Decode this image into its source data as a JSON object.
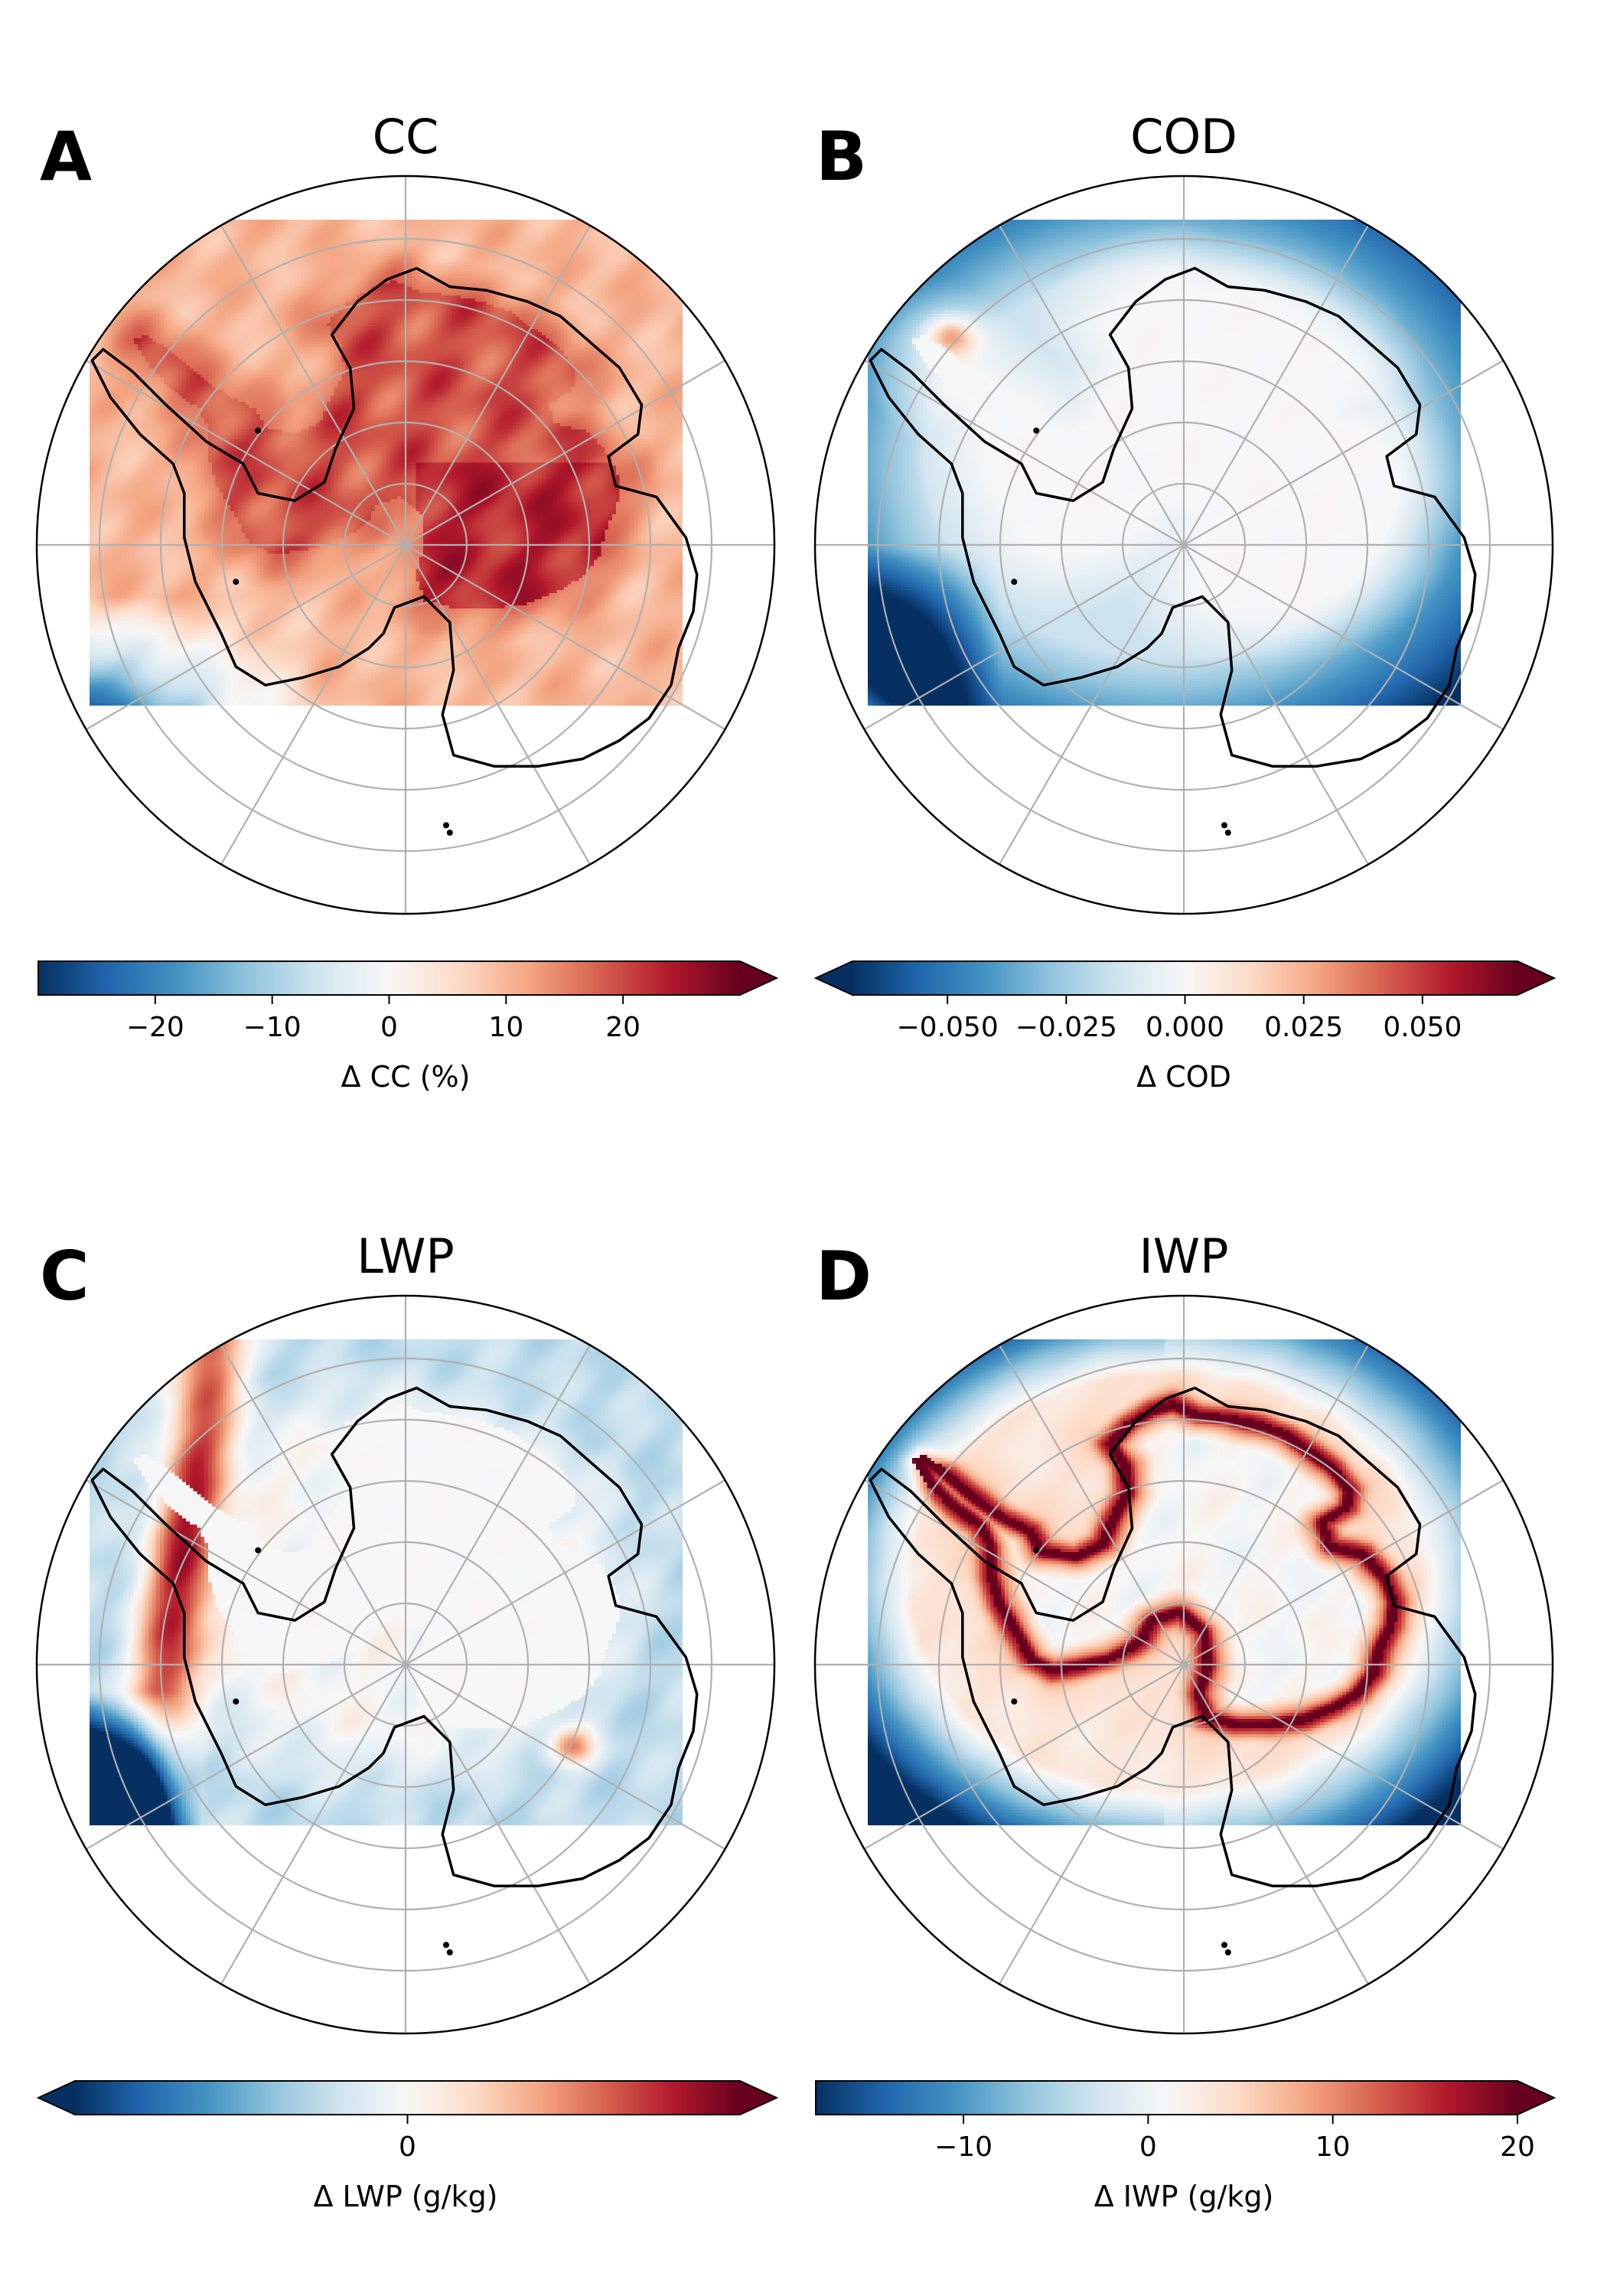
{
  "figure": {
    "colormap": {
      "name": "RdBu_r",
      "stops": [
        "#053061",
        "#2166ac",
        "#4393c3",
        "#92c5de",
        "#d1e5f0",
        "#f7f7f7",
        "#fddbc7",
        "#f4a582",
        "#d6604d",
        "#b2182b",
        "#67001f"
      ]
    },
    "coastline_color": "#000000",
    "gridline_color": "#b0b0b0"
  },
  "chart_data": [
    {
      "type": "heatmap",
      "panel_label": "A",
      "title": "CC",
      "colorbar": {
        "label": "Δ CC (%)",
        "vmin": -30,
        "vmax": 30,
        "ticks": [
          -20,
          -10,
          0,
          10,
          20
        ],
        "tick_labels": [
          "−20",
          "−10",
          "0",
          "10",
          "20"
        ],
        "extend": "max"
      },
      "field": {
        "pattern": "cc",
        "interior_anomaly": 23,
        "ocean_anomaly": 10,
        "far_edge_anomaly": -4
      }
    },
    {
      "type": "heatmap",
      "panel_label": "B",
      "title": "COD",
      "colorbar": {
        "label": "Δ COD",
        "vmin": -0.07,
        "vmax": 0.07,
        "ticks": [
          -0.05,
          -0.025,
          0,
          0.025,
          0.05
        ],
        "tick_labels": [
          "−0.050",
          "−0.025",
          "0.000",
          "0.025",
          "0.050"
        ],
        "extend": "both"
      },
      "field": {
        "pattern": "cod",
        "interior_anomaly": 0,
        "ocean_anomaly": -0.015,
        "far_edge_anomaly": -0.07
      }
    },
    {
      "type": "heatmap",
      "panel_label": "C",
      "title": "LWP",
      "colorbar": {
        "label": "Δ LWP (g/kg)",
        "vmin": -1,
        "vmax": 1,
        "ticks": [
          0
        ],
        "tick_labels": [
          "0"
        ],
        "extend": "both"
      },
      "field": {
        "pattern": "lwp",
        "interior_anomaly": 0,
        "peninsula_anomaly": 0.9,
        "far_edge_anomaly": -0.9
      }
    },
    {
      "type": "heatmap",
      "panel_label": "D",
      "title": "IWP",
      "colorbar": {
        "label": "Δ IWP (g/kg)",
        "vmin": -18,
        "vmax": 20,
        "ticks": [
          -10,
          0,
          10,
          20
        ],
        "tick_labels": [
          "−10",
          "0",
          "10",
          "20"
        ],
        "extend": "max"
      },
      "field": {
        "pattern": "iwp",
        "interior_anomaly": 1,
        "coast_anomaly": 19,
        "ocean_anomaly": 3,
        "far_edge_anomaly": -12
      }
    }
  ]
}
